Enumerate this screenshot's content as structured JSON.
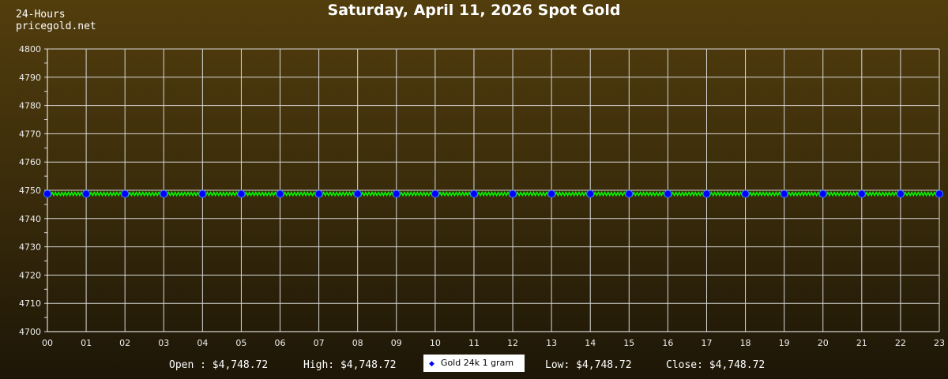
{
  "header": {
    "title": "Saturday, April 11, 2026 Spot Gold",
    "period": "24-Hours",
    "site": "pricegold.net"
  },
  "footer": {
    "open": "Open : $4,748.72",
    "high": "High: $4,748.72",
    "low": "Low: $4,748.72",
    "close": "Close: $4,748.72"
  },
  "chart_data": {
    "type": "line",
    "title": "Saturday, April 11, 2026 Spot Gold",
    "categories": [
      "00",
      "01",
      "02",
      "03",
      "04",
      "05",
      "06",
      "07",
      "08",
      "09",
      "10",
      "11",
      "12",
      "13",
      "14",
      "15",
      "16",
      "17",
      "18",
      "19",
      "20",
      "21",
      "22",
      "23"
    ],
    "series": [
      {
        "name": "Gold 24k 1 gram",
        "values": [
          4748.72,
          4748.72,
          4748.72,
          4748.72,
          4748.72,
          4748.72,
          4748.72,
          4748.72,
          4748.72,
          4748.72,
          4748.72,
          4748.72,
          4748.72,
          4748.72,
          4748.72,
          4748.72,
          4748.72,
          4748.72,
          4748.72,
          4748.72,
          4748.72,
          4748.72,
          4748.72,
          4748.72
        ]
      }
    ],
    "ylim": [
      4700,
      4800
    ],
    "yticks": [
      4700,
      4710,
      4720,
      4730,
      4740,
      4750,
      4760,
      4770,
      4780,
      4790,
      4800
    ],
    "grid": true,
    "legend": "bottom-center",
    "colors": {
      "line": "#00ff00",
      "marker": "#0000ff",
      "grid": "#d8d8d8"
    }
  }
}
